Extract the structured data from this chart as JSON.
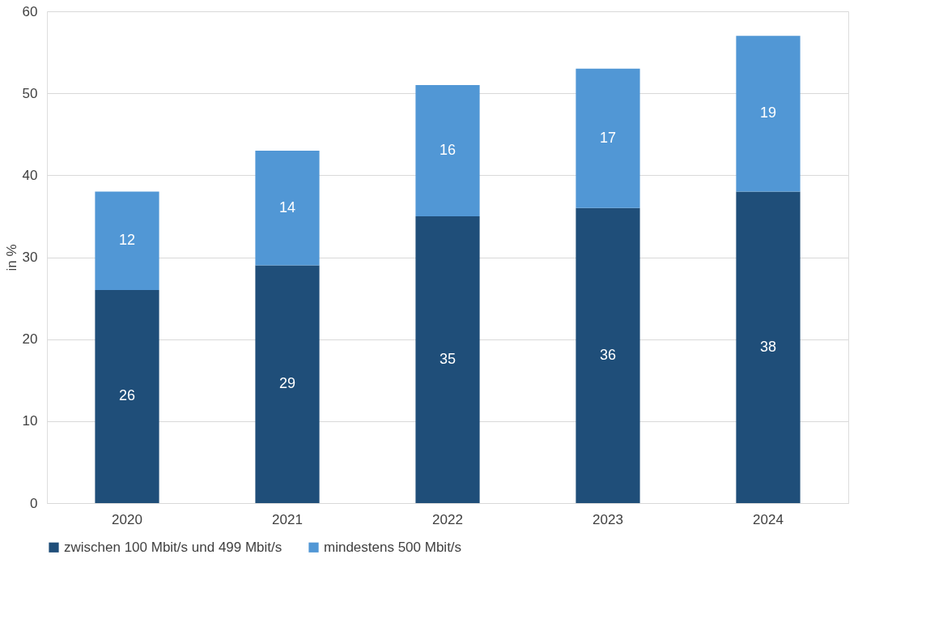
{
  "chart_data": {
    "type": "bar",
    "stacked": true,
    "ylabel": "in %",
    "categories": [
      "2020",
      "2021",
      "2022",
      "2023",
      "2024"
    ],
    "series": [
      {
        "name": "zwischen 100 Mbit/s und 499 Mbit/s",
        "color": "#1f4e79",
        "values": [
          26,
          29,
          35,
          36,
          38
        ]
      },
      {
        "name": "mindestens 500 Mbit/s",
        "color": "#5197d5",
        "values": [
          12,
          14,
          16,
          17,
          19
        ]
      }
    ],
    "ylim": [
      0,
      60
    ],
    "yticks": [
      0,
      10,
      20,
      30,
      40,
      50,
      60
    ],
    "grid": "y",
    "legend": "bottom",
    "data_labels": true
  }
}
